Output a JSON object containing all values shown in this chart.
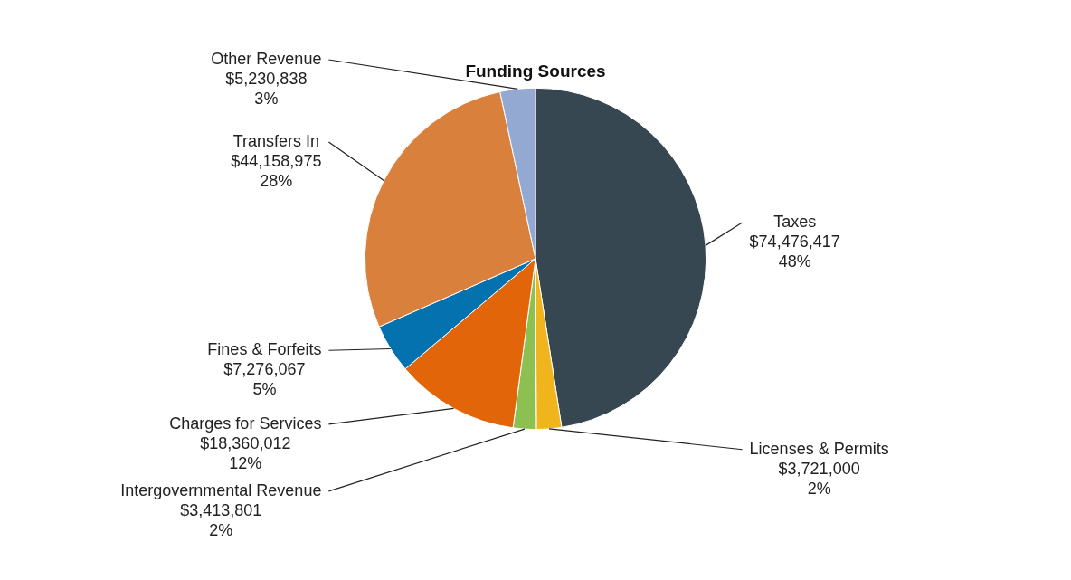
{
  "chart_data": {
    "type": "pie",
    "title": "Funding Sources",
    "categories": [
      "Taxes",
      "Licenses & Permits",
      "Intergovernmental Revenue",
      "Charges for Services",
      "Fines & Forfeits",
      "Transfers In",
      "Other Revenue"
    ],
    "values": [
      74476417,
      3721000,
      3413801,
      18360012,
      7276067,
      44158975,
      5230838
    ],
    "value_labels": [
      "$74,476,417\n48%",
      "$3,721,000\n2%",
      "$3,413,801\n2%",
      "$18,360,012\n12%",
      "$7,276,067\n5%",
      "$44,158,975\n28%",
      "$5,230,838\n3%"
    ],
    "colors": [
      "#374751",
      "#f0b41c",
      "#8cc152",
      "#e2650a",
      "#0572b0",
      "#d8803c",
      "#94a9d1"
    ],
    "legend": false
  }
}
